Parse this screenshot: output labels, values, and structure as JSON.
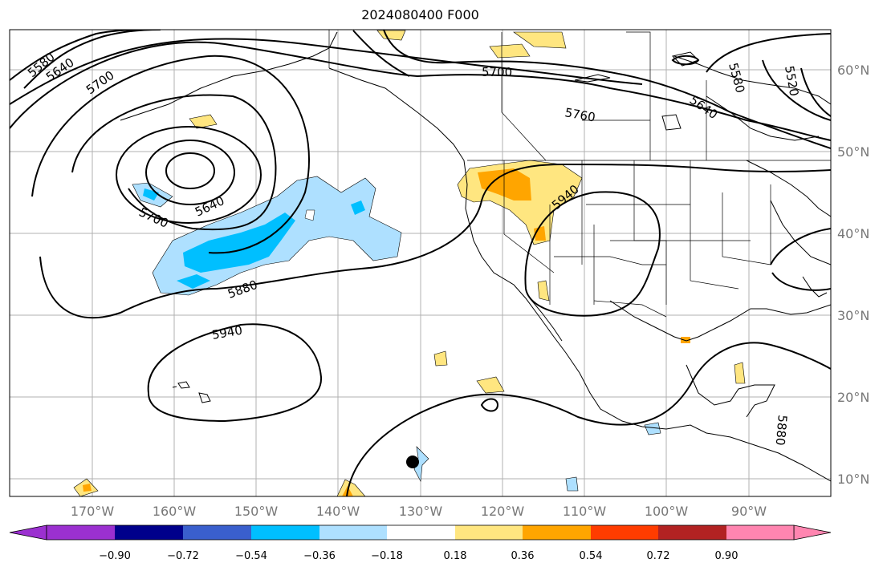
{
  "title": "2024080400 F000",
  "map": {
    "lon_ticks": [
      "170°W",
      "160°W",
      "150°W",
      "140°W",
      "130°W",
      "120°W",
      "110°W",
      "100°W",
      "90°W"
    ],
    "lat_ticks": [
      "60°N",
      "50°N",
      "40°N",
      "30°N",
      "20°N",
      "10°N"
    ],
    "contour_labels": [
      "5580",
      "5640",
      "5700",
      "5700",
      "5760",
      "5580",
      "5520",
      "5640",
      "5640",
      "5700",
      "5880",
      "5940",
      "5940",
      "5880"
    ],
    "gridlines": true,
    "marker": "storm-center-dot"
  },
  "colorbar": {
    "tick_labels": [
      "−0.90",
      "−0.72",
      "−0.54",
      "−0.36",
      "−0.18",
      "0.18",
      "0.36",
      "0.54",
      "0.72",
      "0.90"
    ],
    "colors": [
      "#9b30d0",
      "#00008b",
      "#3a5fcd",
      "#00bfff",
      "#aee0ff",
      "#ffffff",
      "#ffe680",
      "#ffa500",
      "#ff3c00",
      "#b22222",
      "#ff85b0"
    ],
    "extend": "both"
  }
}
